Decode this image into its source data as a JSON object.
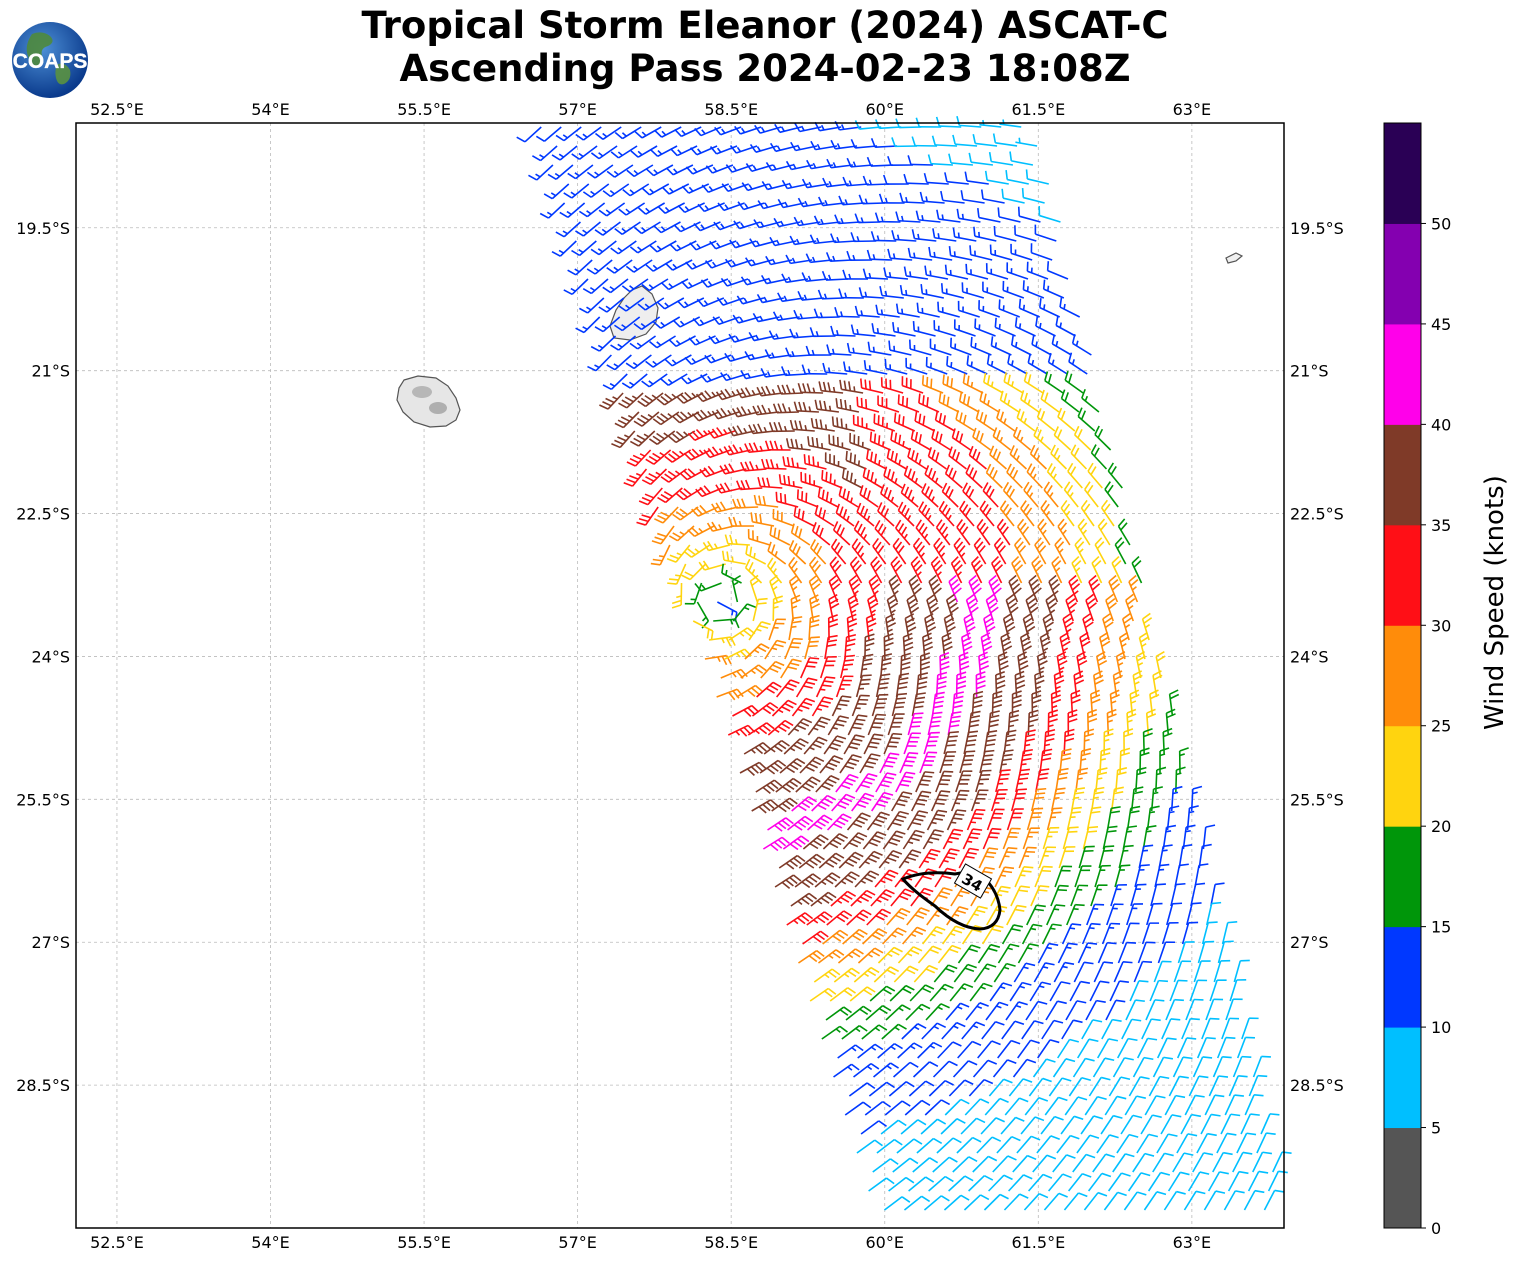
{
  "title_line1": "Tropical Storm Eleanor (2024) ASCAT-C",
  "title_line2": "Ascending Pass 2024-02-23 18:08Z",
  "logo_text": "COAPS",
  "map": {
    "lon_range": [
      52.1,
      63.9
    ],
    "lat_range": [
      -30.0,
      -18.4
    ],
    "lon_ticks": [
      "52.5°E",
      "54°E",
      "55.5°E",
      "57°E",
      "58.5°E",
      "60°E",
      "61.5°E",
      "63°E"
    ],
    "lon_tick_values": [
      52.5,
      54,
      55.5,
      57,
      58.5,
      60,
      61.5,
      63
    ],
    "lat_ticks": [
      "19.5°S",
      "21°S",
      "22.5°S",
      "24°S",
      "25.5°S",
      "27°S",
      "28.5°S"
    ],
    "lat_tick_values": [
      -19.5,
      -21,
      -22.5,
      -24,
      -25.5,
      -27,
      -28.5
    ],
    "grid": true,
    "storm_center": {
      "lon": 58.4,
      "lat": -23.4
    },
    "contour_label": "34",
    "land_color": "#e8e8e8",
    "coast_color": "#555555"
  },
  "colorbar": {
    "label": "Wind Speed (knots)",
    "ticks": [
      "0",
      "5",
      "10",
      "15",
      "20",
      "25",
      "30",
      "35",
      "40",
      "45",
      "50"
    ],
    "bins": [
      {
        "min": 0,
        "max": 5,
        "color": "#555555"
      },
      {
        "min": 5,
        "max": 10,
        "color": "#00bfff"
      },
      {
        "min": 10,
        "max": 15,
        "color": "#0038ff"
      },
      {
        "min": 15,
        "max": 20,
        "color": "#00960a"
      },
      {
        "min": 20,
        "max": 25,
        "color": "#ffd40f"
      },
      {
        "min": 25,
        "max": 30,
        "color": "#ff8c0a"
      },
      {
        "min": 30,
        "max": 35,
        "color": "#ff0f16"
      },
      {
        "min": 35,
        "max": 40,
        "color": "#7f3a28"
      },
      {
        "min": 40,
        "max": 45,
        "color": "#ff00ea"
      },
      {
        "min": 45,
        "max": 50,
        "color": "#8400b0"
      },
      {
        "min": 50,
        "max": 55,
        "color": "#2a0055"
      }
    ]
  }
}
